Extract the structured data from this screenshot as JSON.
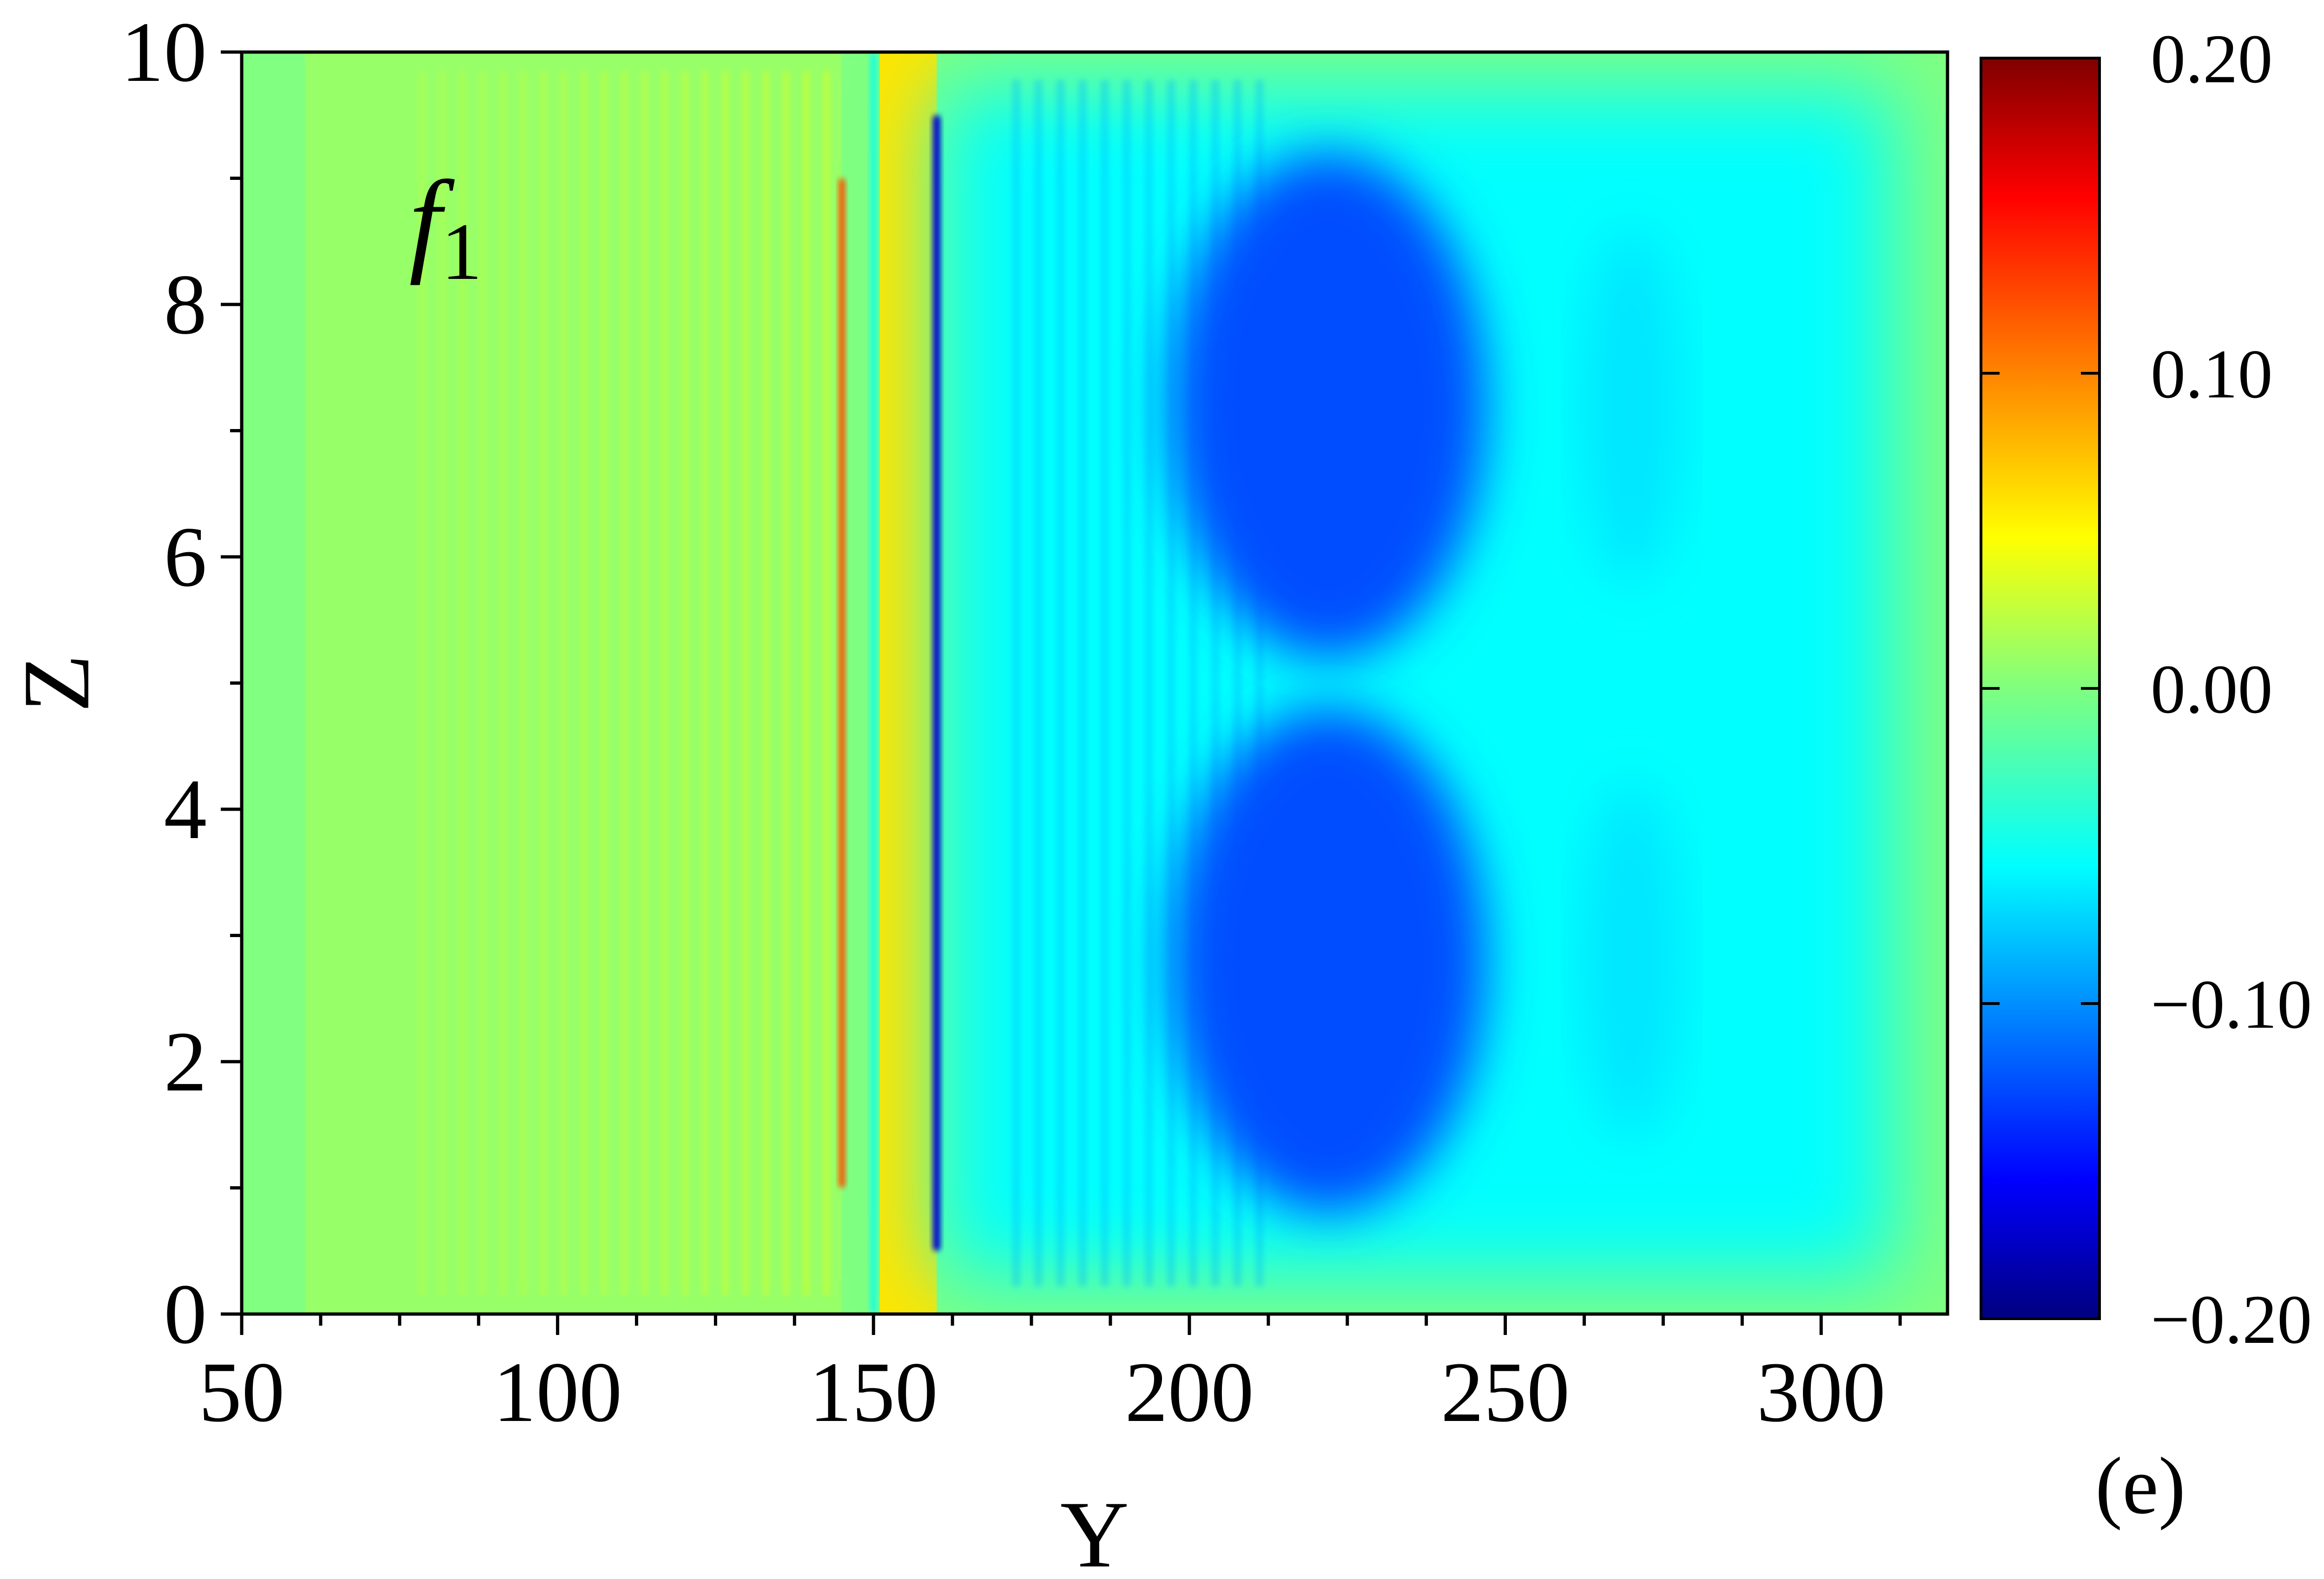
{
  "chart_data": {
    "type": "heatmap",
    "title": "",
    "xlabel": "Y",
    "ylabel": "Z",
    "xlim": [
      50,
      320
    ],
    "ylim": [
      0,
      10
    ],
    "x_ticks": [
      50,
      100,
      150,
      200,
      250,
      300
    ],
    "y_ticks": [
      0,
      2,
      4,
      6,
      8,
      10
    ],
    "field_label": "f",
    "field_label_sub": "1",
    "panel_label": "(e)",
    "colorbar": {
      "min": -0.2,
      "max": 0.2,
      "ticks": [
        0.2,
        0.1,
        0.0,
        -0.1,
        -0.2
      ],
      "tick_labels": [
        "0.20",
        "0.10",
        "0.00",
        "−0.10",
        "−0.20"
      ],
      "colormap": "jet"
    },
    "features": [
      {
        "y_from": 60,
        "y_to": 145,
        "z_from": 0,
        "z_to": 10,
        "value": 0.015,
        "note": "weak streaks"
      },
      {
        "y": 145,
        "z_from": 1,
        "z_to": 9,
        "value": 0.12
      },
      {
        "y": 150,
        "z_from": 0,
        "z_to": 10,
        "value": -0.04
      },
      {
        "y_from": 151,
        "y_to": 160,
        "z_from": 0,
        "z_to": 10,
        "value": 0.06
      },
      {
        "y": 160,
        "z_from": 0.5,
        "z_to": 9.5,
        "value": -0.17
      },
      {
        "y_from": 161,
        "y_to": 320,
        "z_from": 0,
        "z_to": 10,
        "value": -0.05
      },
      {
        "y": 222,
        "z": 7.2,
        "value": -0.12
      },
      {
        "y": 222,
        "z": 2.8,
        "value": -0.12
      },
      {
        "y": 270,
        "z": 7.2,
        "value": -0.06
      },
      {
        "y": 270,
        "z": 2.8,
        "value": -0.06
      }
    ],
    "grid": false,
    "legend": "none"
  }
}
